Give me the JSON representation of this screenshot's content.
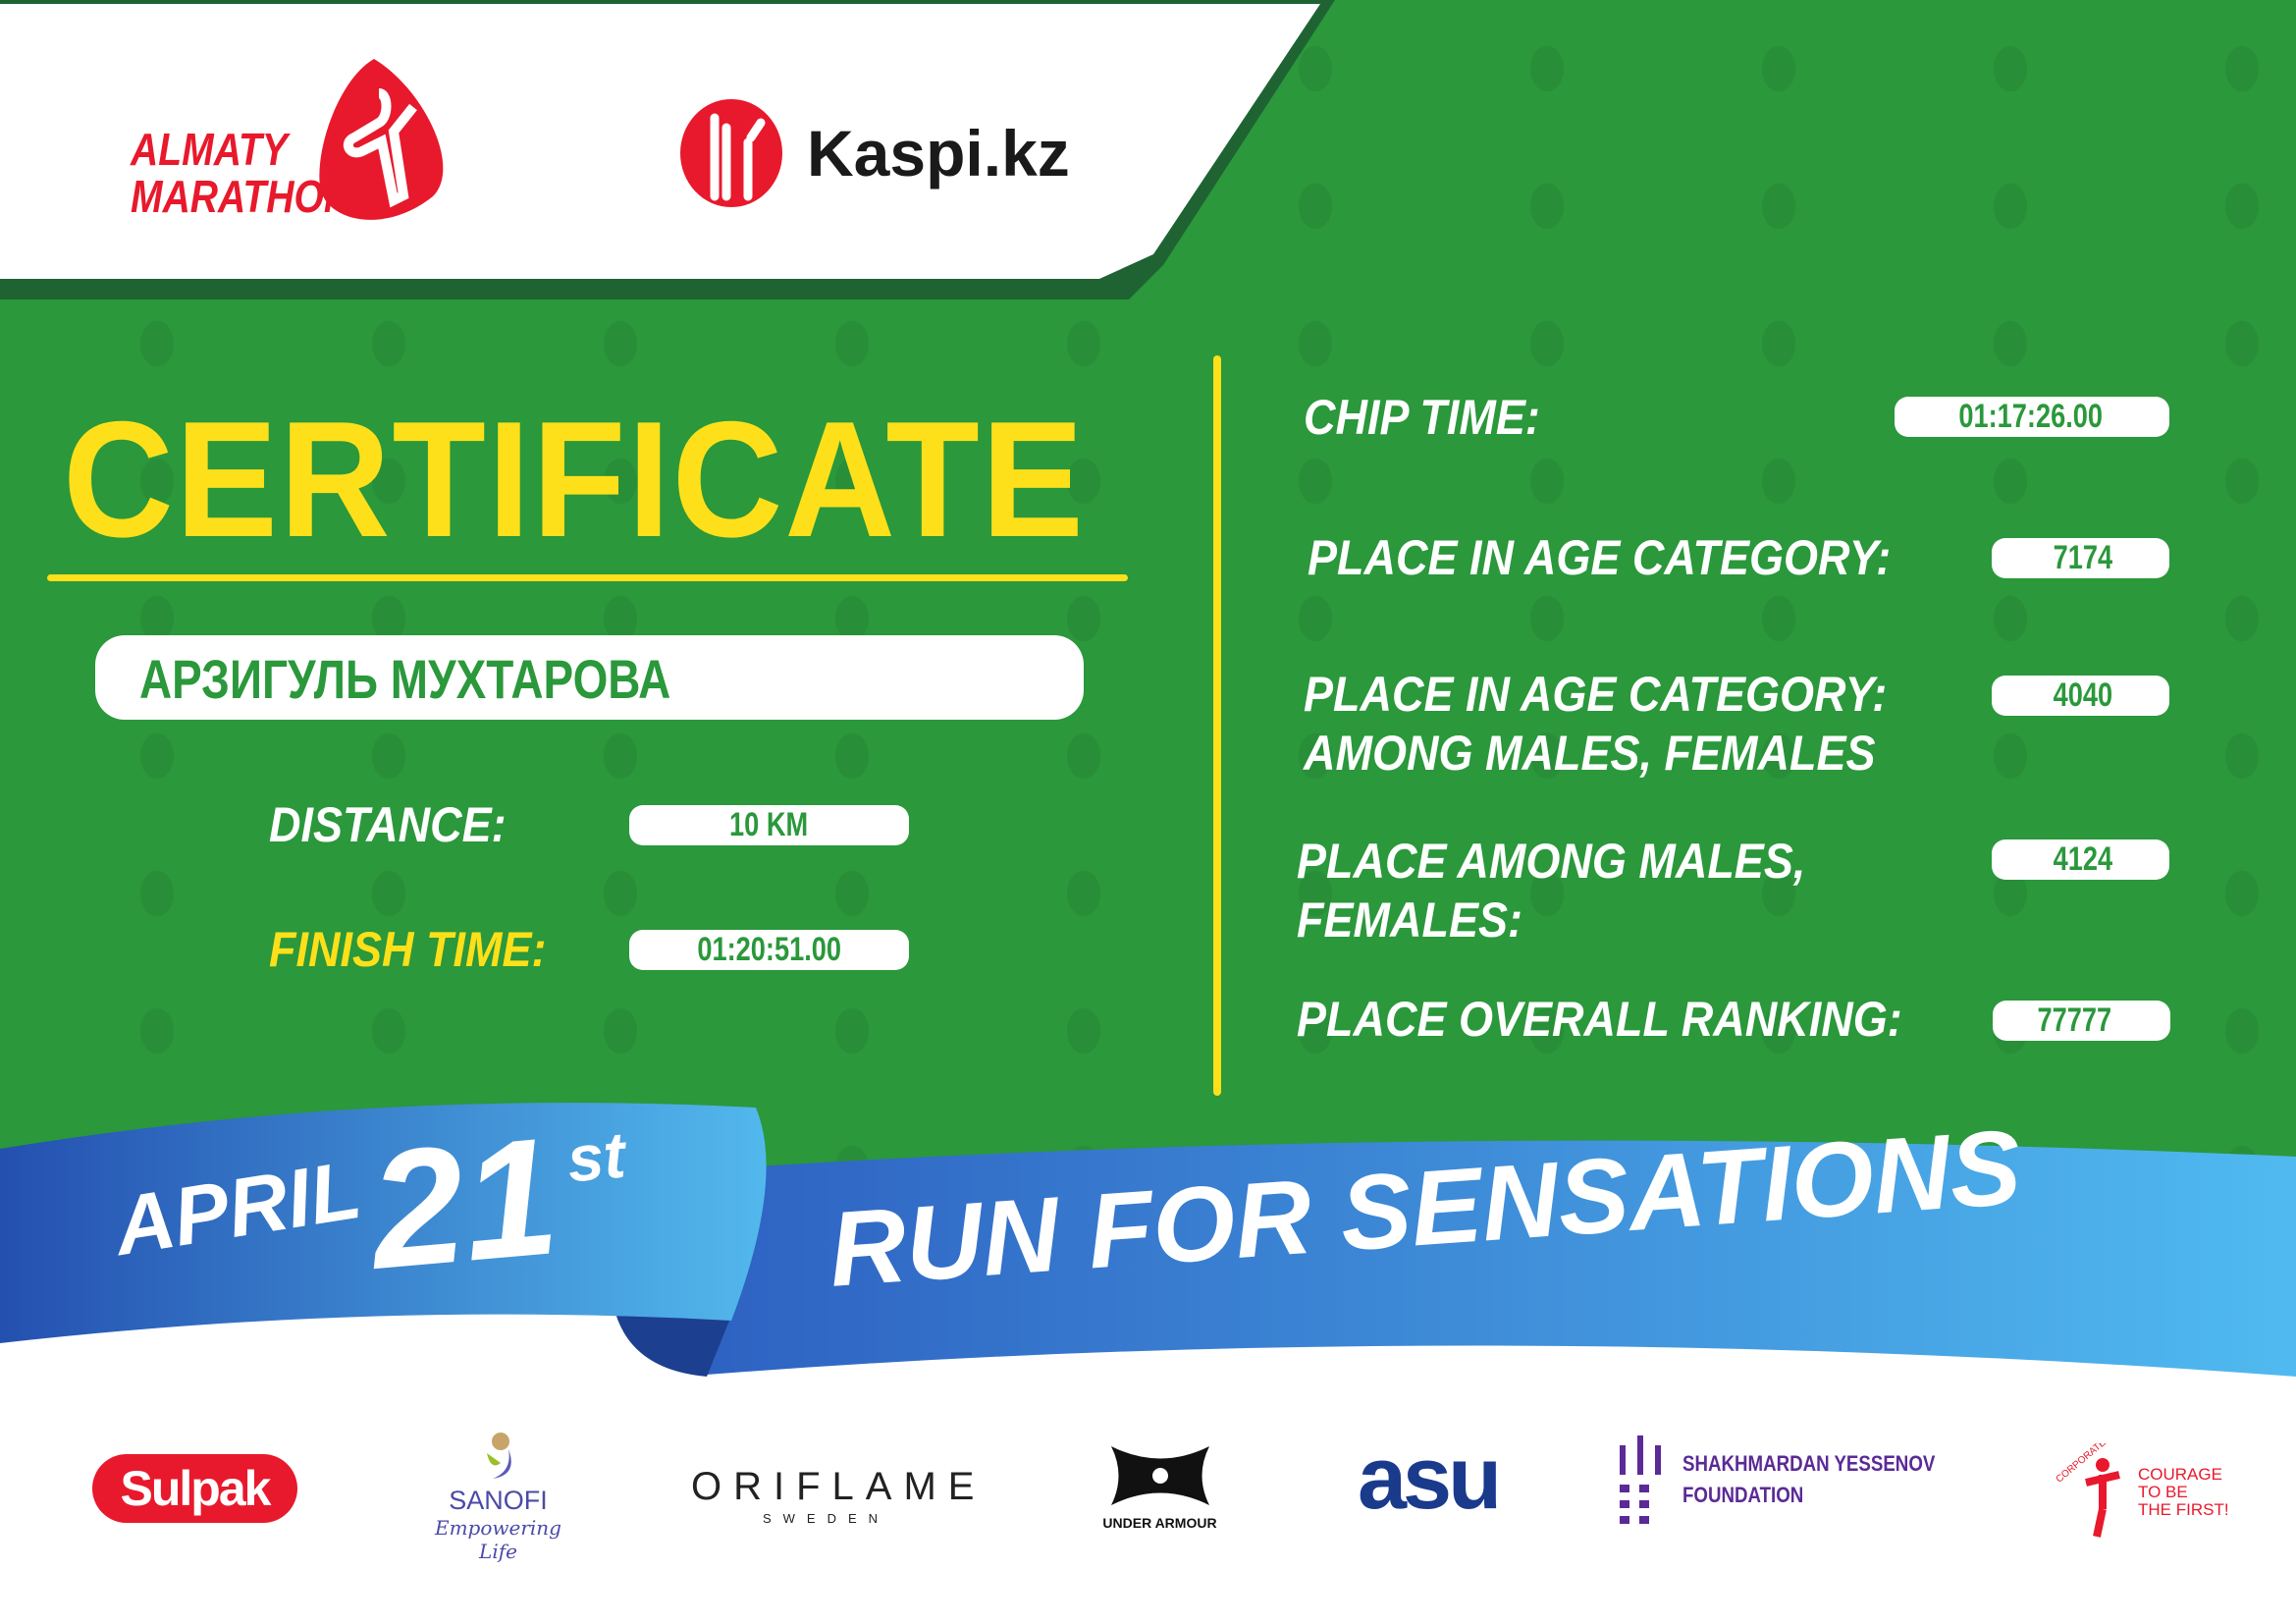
{
  "header": {
    "logo_event": "ALMATY MARATHON",
    "logo_sponsor": "Kaspi.kz"
  },
  "title": "CERTIFICATE",
  "participant": {
    "name": "АРЗИГУЛЬ МУХТАРОВА"
  },
  "left_fields": [
    {
      "label": "DISTANCE:",
      "value": "10 KM"
    },
    {
      "label": "FINISH TIME:",
      "value": "01:20:51.00"
    }
  ],
  "right_fields": [
    {
      "label": "CHIP TIME:",
      "value": "01:17:26.00"
    },
    {
      "label": "PLACE IN AGE CATEGORY:",
      "value": "7174"
    },
    {
      "label_line1": "PLACE IN AGE CATEGORY:",
      "label_line2": "AMONG MALES, FEMALES",
      "value": "4040"
    },
    {
      "label_line1": "PLACE AMONG MALES,",
      "label_line2": "FEMALES:",
      "value": "4124"
    },
    {
      "label": "PLACE OVERALL RANKING:",
      "value": "77777"
    }
  ],
  "ribbon": {
    "month": "APRIL",
    "day": "21",
    "suffix": "st",
    "slogan": "RUN FOR SENSATIONS"
  },
  "sponsors": {
    "sulpak": "Sulpak",
    "sanofi": "SANOFI",
    "sanofi_tag": "Empowering Life",
    "oriflame": "ORIFLAME",
    "oriflame_sub": "SWEDEN",
    "under_armour": "UNDER ARMOUR",
    "asu": "asu",
    "yessenov_1": "SHAKHMARDAN YESSENOV",
    "yessenov_2": "FOUNDATION",
    "fund_arc": "CORPORATE FUND",
    "fund_1": "COURAGE",
    "fund_2": "TO BE",
    "fund_3": "THE FIRST!"
  },
  "colors": {
    "green": "#2a983b",
    "yellow": "#fde01a",
    "red": "#e8192c",
    "blue": "#3a7fd5"
  }
}
